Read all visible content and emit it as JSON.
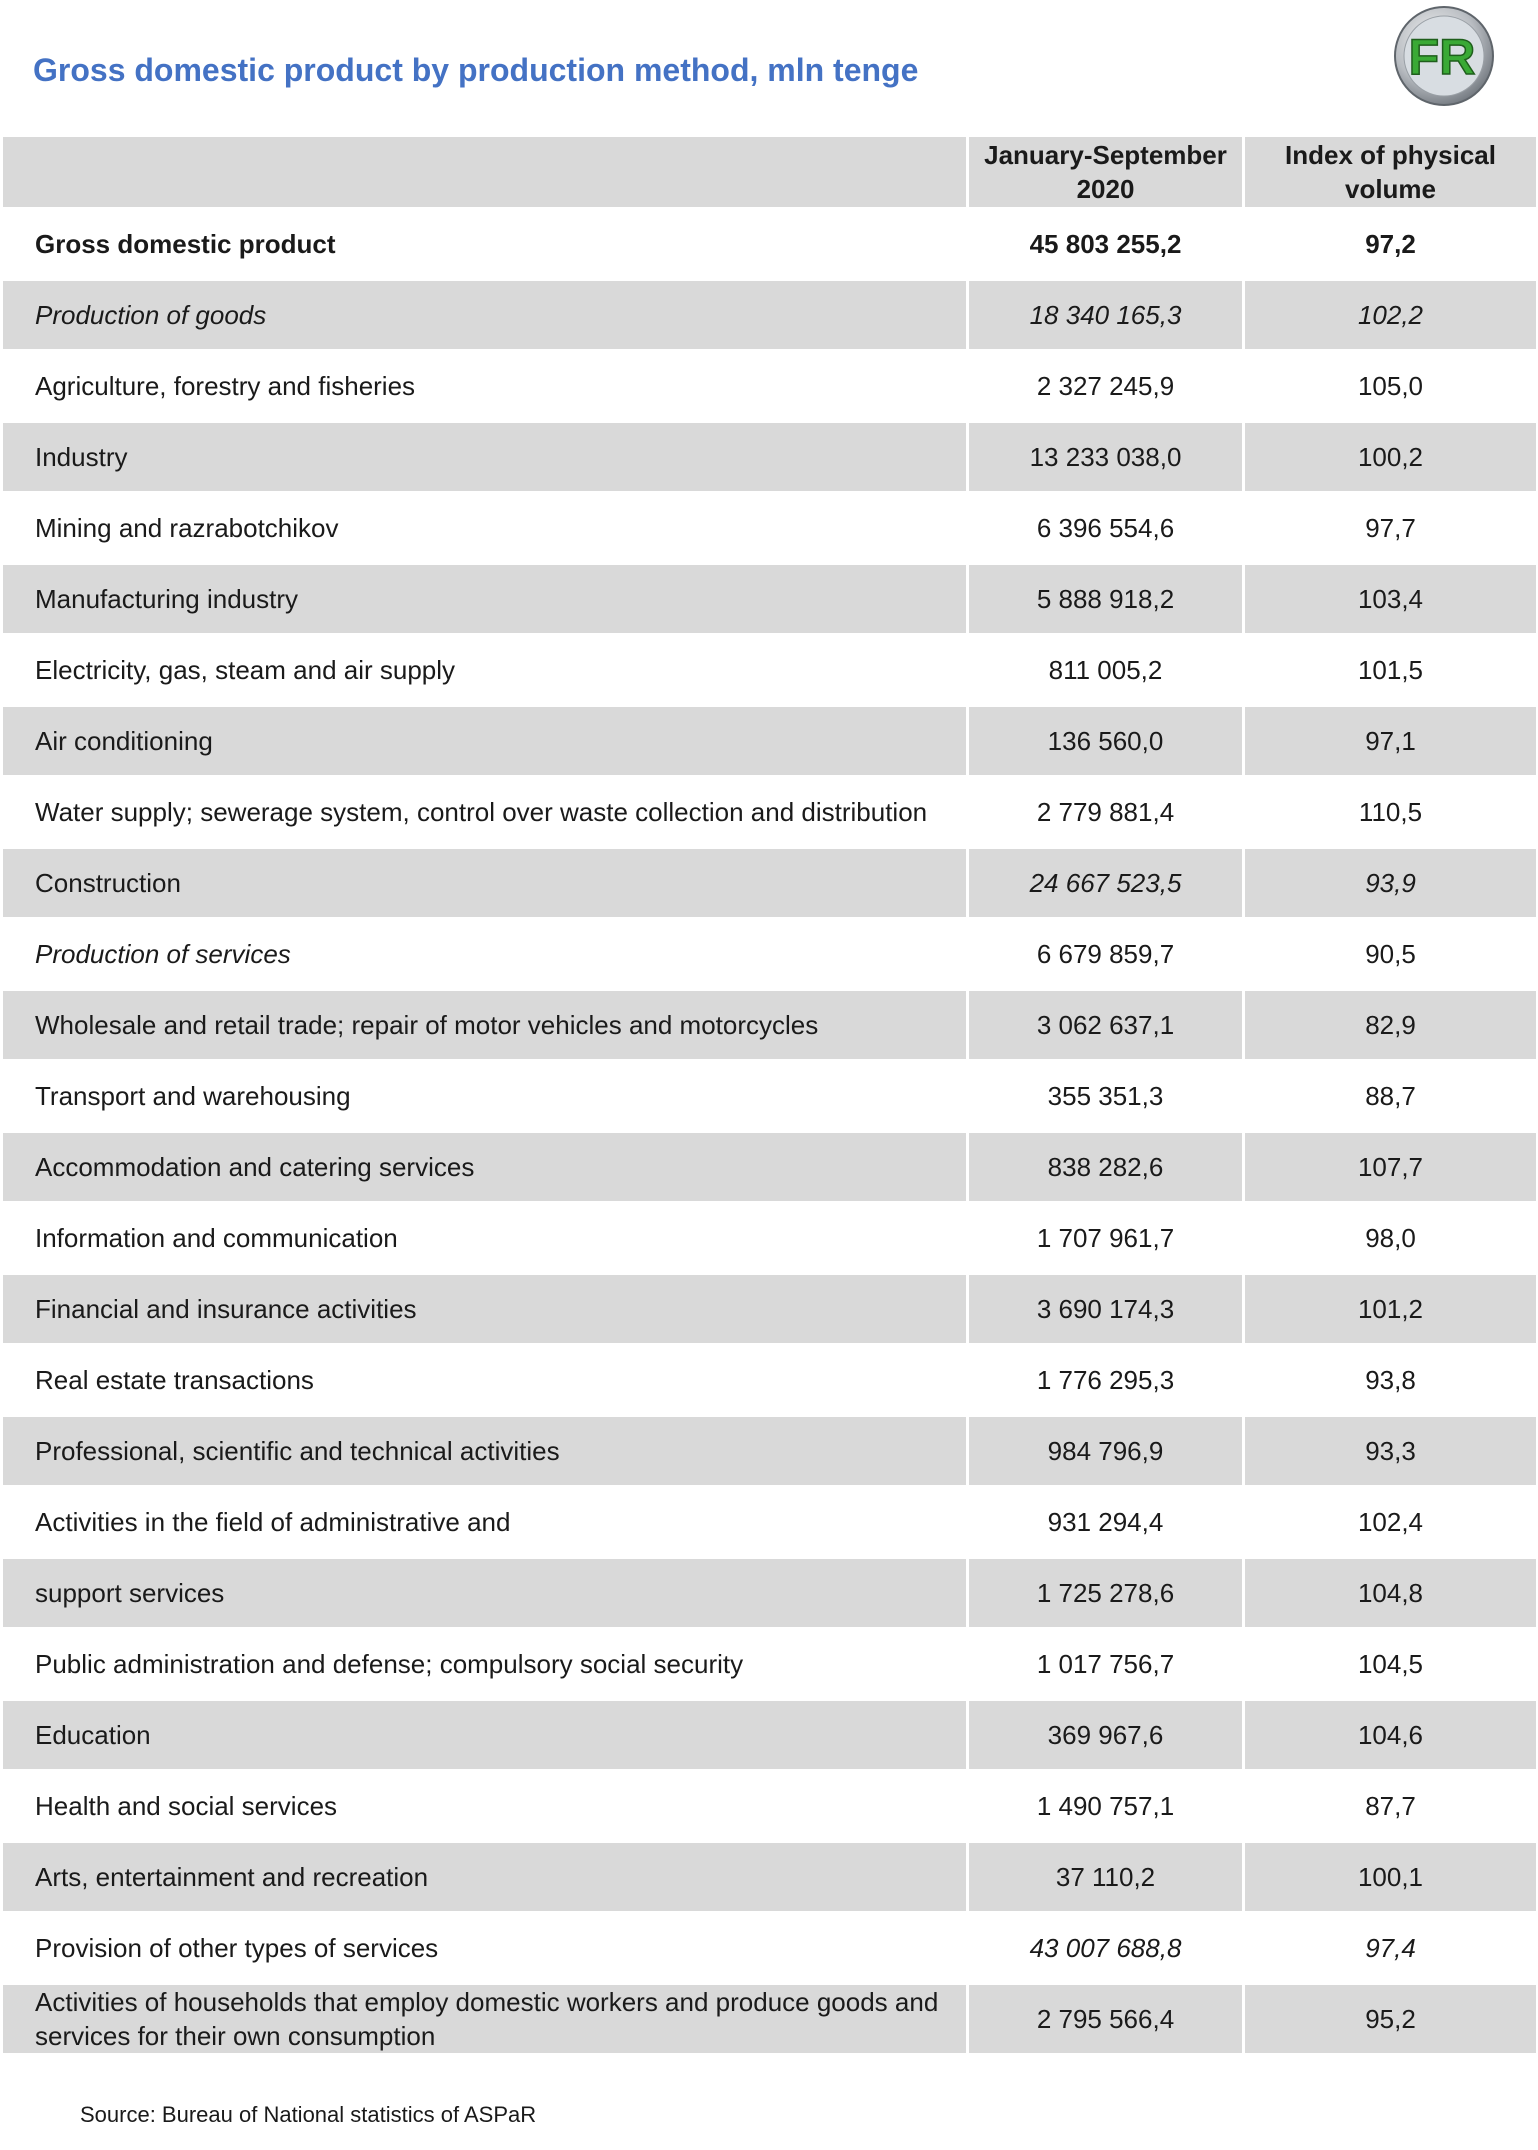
{
  "title": "Gross domestic product by production method, mln tenge",
  "logo": {
    "text": "FR",
    "icon": "fr-logo"
  },
  "header": [
    "",
    "January-September 2020",
    "Index of physical volume"
  ],
  "rows": [
    {
      "label": "Gross domestic product",
      "value": "45 803 255,2",
      "index": "97,2",
      "bold_label": true,
      "bold_values": true
    },
    {
      "label": "Production of goods",
      "value": "18 340 165,3",
      "index": "102,2",
      "italic_label": true,
      "italic_values": true
    },
    {
      "label": "Agriculture, forestry and fisheries",
      "value": "2 327 245,9",
      "index": "105,0"
    },
    {
      "label": "Industry",
      "value": "13 233 038,0",
      "index": "100,2"
    },
    {
      "label": "Mining and razrabotchikov",
      "value": "6 396 554,6",
      "index": "97,7"
    },
    {
      "label": "Manufacturing industry",
      "value": "5 888 918,2",
      "index": "103,4"
    },
    {
      "label": "Electricity, gas, steam and air supply",
      "value": "811 005,2",
      "index": "101,5"
    },
    {
      "label": "Air conditioning",
      "value": "136 560,0",
      "index": "97,1"
    },
    {
      "label": "Water supply; sewerage system, control over waste collection and distribution",
      "value": "2 779 881,4",
      "index": "110,5"
    },
    {
      "label": "Construction",
      "value": "24 667 523,5",
      "index": "93,9",
      "italic_values": true
    },
    {
      "label": "Production of services",
      "value": "6 679 859,7",
      "index": "90,5",
      "italic_label": true
    },
    {
      "label": "Wholesale and retail trade; repair of motor vehicles and motorcycles",
      "value": "3 062 637,1",
      "index": "82,9"
    },
    {
      "label": "Transport and warehousing",
      "value": "355 351,3",
      "index": "88,7"
    },
    {
      "label": "Accommodation and catering services",
      "value": "838 282,6",
      "index": "107,7"
    },
    {
      "label": "Information and communication",
      "value": "1 707 961,7",
      "index": "98,0"
    },
    {
      "label": "Financial and insurance activities",
      "value": "3 690 174,3",
      "index": "101,2"
    },
    {
      "label": "Real estate transactions",
      "value": "1 776 295,3",
      "index": "93,8"
    },
    {
      "label": "Professional, scientific and technical activities",
      "value": "984 796,9",
      "index": "93,3"
    },
    {
      "label": "Activities in the field of administrative and",
      "value": "931 294,4",
      "index": "102,4"
    },
    {
      "label": "support services",
      "value": "1 725 278,6",
      "index": "104,8"
    },
    {
      "label": "Public administration and defense; compulsory social security",
      "value": "1 017 756,7",
      "index": "104,5"
    },
    {
      "label": "Education",
      "value": "369 967,6",
      "index": "104,6"
    },
    {
      "label": "Health and social services",
      "value": "1 490 757,1",
      "index": "87,7"
    },
    {
      "label": "Arts, entertainment and recreation",
      "value": "37 110,2",
      "index": "100,1"
    },
    {
      "label": "Provision of other types of services",
      "value": "43 007 688,8",
      "index": "97,4",
      "italic_values": true
    },
    {
      "label": "Activities of households that employ domestic workers and produce goods and services for their own consumption",
      "value": "2 795 566,4",
      "index": "95,2"
    }
  ],
  "source": "Source: Bureau of National statistics of ASPaR",
  "colors": {
    "title": "#4472C4",
    "row_shade": "#d9d9d9",
    "logo_green": "#3aa935"
  }
}
